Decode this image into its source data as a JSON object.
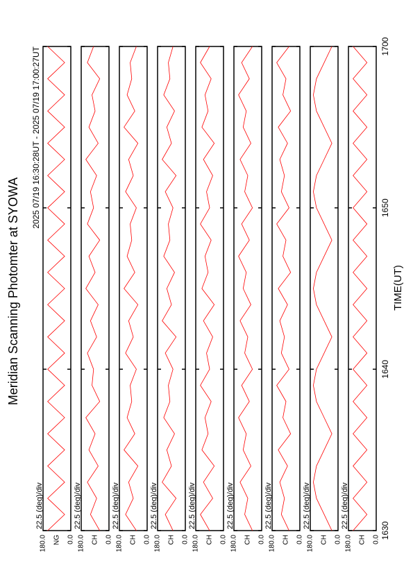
{
  "chart_data": {
    "type": "line",
    "title": "Meridian Scanning Photomter at SYOWA",
    "subtitle": "2025 07/19 16:30:28UT - 2025 07/19 17:00:27UT",
    "xlabel": "TIME(UT)",
    "scale_label": "22.5 (deg)/div",
    "xlim": [
      0,
      30
    ],
    "xticks": [
      {
        "value": 0,
        "label": "1630"
      },
      {
        "value": 10,
        "label": "1640"
      },
      {
        "value": 20,
        "label": "1650"
      },
      {
        "value": 30,
        "label": "1700"
      }
    ],
    "ylim": [
      0,
      180
    ],
    "yticks": [
      {
        "value": 0,
        "label": "0.0"
      },
      {
        "value": 180,
        "label": "180.0"
      }
    ],
    "color": "#ff0000",
    "x": [
      0,
      1,
      2,
      3,
      4,
      5,
      6,
      7,
      8,
      9,
      10,
      11,
      12,
      13,
      14,
      15,
      16,
      17,
      18,
      19,
      20,
      21,
      22,
      23,
      24,
      25,
      26,
      27,
      28,
      29,
      30
    ],
    "panels": [
      {
        "name": "NG",
        "values": [
          150,
          40,
          150,
          40,
          150,
          40,
          150,
          40,
          150,
          40,
          150,
          40,
          150,
          40,
          150,
          40,
          150,
          40,
          150,
          40,
          150,
          40,
          150,
          40,
          150,
          40,
          150,
          40,
          150,
          40,
          150
        ]
      },
      {
        "name": "CH",
        "values": [
          60,
          120,
          80,
          140,
          70,
          130,
          90,
          150,
          60,
          110,
          100,
          140,
          80,
          120,
          70,
          150,
          90,
          130,
          60,
          140,
          100,
          120,
          80,
          150,
          70,
          130,
          90,
          110,
          60,
          140,
          100
        ]
      },
      {
        "name": "CH",
        "values": [
          70,
          140,
          90,
          120,
          60,
          150,
          80,
          130,
          100,
          110,
          70,
          140,
          90,
          120,
          60,
          150,
          80,
          130,
          100,
          110,
          70,
          140,
          90,
          120,
          60,
          150,
          80,
          130,
          100,
          110,
          70
        ]
      },
      {
        "name": "CH",
        "values": [
          80,
          130,
          60,
          150,
          90,
          120,
          70,
          140,
          100,
          110,
          80,
          130,
          60,
          150,
          90,
          120,
          70,
          140,
          100,
          110,
          80,
          130,
          60,
          150,
          90,
          120,
          70,
          140,
          100,
          110,
          80
        ]
      },
      {
        "name": "CH",
        "values": [
          90,
          150,
          70,
          130,
          60,
          140,
          100,
          120,
          80,
          150,
          90,
          110,
          70,
          130,
          60,
          140,
          100,
          120,
          80,
          150,
          90,
          110,
          70,
          130,
          60,
          140,
          100,
          120,
          80,
          150,
          90
        ]
      },
      {
        "name": "CH",
        "values": [
          60,
          110,
          90,
          140,
          70,
          120,
          100,
          150,
          80,
          130,
          60,
          110,
          90,
          140,
          70,
          120,
          100,
          150,
          80,
          130,
          60,
          110,
          90,
          140,
          70,
          120,
          100,
          150,
          80,
          130,
          60
        ]
      },
      {
        "name": "CH",
        "values": [
          70,
          120,
          100,
          130,
          80,
          140,
          60,
          110,
          90,
          150,
          70,
          120,
          100,
          130,
          80,
          140,
          60,
          110,
          90,
          150,
          70,
          120,
          100,
          130,
          80,
          140,
          60,
          110,
          90,
          150,
          70
        ]
      },
      {
        "name": "CH",
        "values": [
          40,
          90,
          140,
          160,
          140,
          90,
          40,
          90,
          140,
          160,
          140,
          90,
          40,
          90,
          140,
          160,
          140,
          90,
          40,
          90,
          140,
          160,
          140,
          90,
          40,
          90,
          140,
          160,
          140,
          90,
          40
        ]
      },
      {
        "name": "CH",
        "values": [
          150,
          60,
          150,
          60,
          150,
          60,
          150,
          60,
          150,
          60,
          150,
          60,
          150,
          60,
          150,
          60,
          150,
          60,
          150,
          60,
          150,
          60,
          150,
          60,
          150,
          60,
          150,
          60,
          150,
          60,
          150
        ]
      }
    ]
  }
}
